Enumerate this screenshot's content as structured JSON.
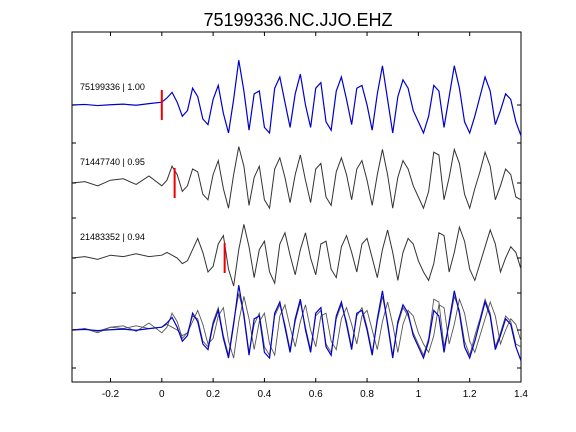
{
  "chart_data": {
    "type": "line",
    "title": "75199336.NC.JJO.EHZ",
    "xlabel": "",
    "ylabel": "",
    "xlim": [
      -0.35,
      1.4
    ],
    "x_ticks": [
      -0.2,
      0,
      0.2,
      0.4,
      0.6,
      0.8,
      1,
      1.2,
      1.4
    ],
    "x_tick_labels": [
      "-0.2",
      "0",
      "0.2",
      "0.4",
      "0.6",
      "0.8",
      "1",
      "1.2",
      "1.4"
    ],
    "grid": false,
    "legend": "none",
    "traces": [
      {
        "label": "75199336 | 1.00",
        "color": "#0000cc",
        "pick": 0.0,
        "x": [
          -0.35,
          -0.3,
          -0.25,
          -0.2,
          -0.15,
          -0.1,
          -0.05,
          0.0,
          0.02,
          0.04,
          0.06,
          0.08,
          0.1,
          0.12,
          0.14,
          0.16,
          0.18,
          0.2,
          0.22,
          0.24,
          0.26,
          0.28,
          0.3,
          0.32,
          0.34,
          0.36,
          0.38,
          0.4,
          0.42,
          0.44,
          0.46,
          0.48,
          0.5,
          0.52,
          0.54,
          0.56,
          0.58,
          0.6,
          0.62,
          0.64,
          0.66,
          0.68,
          0.7,
          0.72,
          0.74,
          0.76,
          0.78,
          0.8,
          0.82,
          0.84,
          0.86,
          0.88,
          0.9,
          0.92,
          0.94,
          0.96,
          0.98,
          1.0,
          1.02,
          1.04,
          1.06,
          1.08,
          1.1,
          1.12,
          1.14,
          1.16,
          1.18,
          1.2,
          1.22,
          1.24,
          1.26,
          1.28,
          1.3,
          1.32,
          1.34,
          1.36,
          1.38,
          1.4
        ],
        "values": [
          0.0,
          0.02,
          -0.02,
          0.01,
          0.03,
          -0.01,
          0.05,
          0.1,
          0.25,
          0.45,
          0.1,
          -0.4,
          -0.2,
          0.6,
          0.3,
          -0.5,
          -0.7,
          0.2,
          0.7,
          -0.3,
          -1.0,
          0.2,
          1.6,
          0.5,
          -0.9,
          0.4,
          0.5,
          -0.8,
          -1.0,
          0.6,
          1.0,
          0.1,
          -0.8,
          0.4,
          1.1,
          0.0,
          -0.8,
          0.6,
          0.8,
          -0.6,
          -0.9,
          0.5,
          1.0,
          0.2,
          -0.7,
          0.6,
          0.7,
          0.0,
          -0.9,
          0.4,
          1.4,
          0.2,
          -1.0,
          0.3,
          0.9,
          0.6,
          -0.2,
          -0.6,
          -1.0,
          -0.4,
          0.7,
          0.5,
          -0.8,
          0.3,
          1.4,
          0.6,
          -0.6,
          -1.0,
          -0.4,
          0.3,
          1.0,
          0.5,
          -0.7,
          -0.2,
          0.4,
          0.2,
          -0.6,
          -1.1
        ]
      },
      {
        "label": "71447740 | 0.95",
        "color": "#333333",
        "pick": 0.05,
        "x": [
          -0.35,
          -0.3,
          -0.25,
          -0.2,
          -0.15,
          -0.1,
          -0.05,
          0.0,
          0.02,
          0.04,
          0.06,
          0.08,
          0.1,
          0.12,
          0.14,
          0.16,
          0.18,
          0.2,
          0.22,
          0.24,
          0.26,
          0.28,
          0.3,
          0.32,
          0.34,
          0.36,
          0.38,
          0.4,
          0.42,
          0.44,
          0.46,
          0.48,
          0.5,
          0.52,
          0.54,
          0.56,
          0.58,
          0.6,
          0.62,
          0.64,
          0.66,
          0.68,
          0.7,
          0.72,
          0.74,
          0.76,
          0.78,
          0.8,
          0.82,
          0.84,
          0.86,
          0.88,
          0.9,
          0.92,
          0.94,
          0.96,
          0.98,
          1.0,
          1.02,
          1.04,
          1.06,
          1.08,
          1.1,
          1.12,
          1.14,
          1.16,
          1.18,
          1.2,
          1.22,
          1.24,
          1.26,
          1.28,
          1.3,
          1.32,
          1.34,
          1.36,
          1.38,
          1.4
        ],
        "values": [
          0.0,
          0.05,
          -0.1,
          0.1,
          0.15,
          -0.05,
          0.25,
          -0.1,
          0.1,
          0.6,
          0.3,
          -0.3,
          -0.1,
          0.5,
          0.4,
          -0.4,
          -0.6,
          0.3,
          0.8,
          -0.2,
          -0.9,
          0.3,
          1.3,
          0.6,
          -0.8,
          0.2,
          0.6,
          -0.6,
          -0.9,
          0.5,
          0.9,
          0.2,
          -0.7,
          0.3,
          1.0,
          0.1,
          -0.7,
          0.5,
          0.7,
          -0.5,
          -0.8,
          0.4,
          0.9,
          0.3,
          -0.6,
          0.5,
          0.8,
          0.1,
          -0.8,
          0.3,
          1.2,
          0.3,
          -0.9,
          0.2,
          0.8,
          0.5,
          -0.1,
          -0.5,
          -0.9,
          -0.3,
          1.1,
          1.0,
          -0.6,
          0.2,
          1.2,
          0.7,
          -0.4,
          -0.9,
          -0.2,
          0.4,
          1.1,
          0.6,
          -0.6,
          -0.1,
          0.5,
          0.3,
          -0.5,
          -0.6
        ]
      },
      {
        "label": "21483352 | 0.94",
        "color": "#333333",
        "pick": 0.245,
        "x": [
          -0.35,
          -0.3,
          -0.25,
          -0.2,
          -0.15,
          -0.1,
          -0.05,
          0.0,
          0.02,
          0.04,
          0.06,
          0.08,
          0.1,
          0.12,
          0.14,
          0.16,
          0.18,
          0.2,
          0.22,
          0.24,
          0.26,
          0.28,
          0.3,
          0.32,
          0.34,
          0.36,
          0.38,
          0.4,
          0.42,
          0.44,
          0.46,
          0.48,
          0.5,
          0.52,
          0.54,
          0.56,
          0.58,
          0.6,
          0.62,
          0.64,
          0.66,
          0.68,
          0.7,
          0.72,
          0.74,
          0.76,
          0.78,
          0.8,
          0.82,
          0.84,
          0.86,
          0.88,
          0.9,
          0.92,
          0.94,
          0.96,
          0.98,
          1.0,
          1.02,
          1.04,
          1.06,
          1.08,
          1.1,
          1.12,
          1.14,
          1.16,
          1.18,
          1.2,
          1.22,
          1.24,
          1.26,
          1.28,
          1.3,
          1.32,
          1.34,
          1.36,
          1.38,
          1.4
        ],
        "values": [
          0.0,
          0.05,
          -0.05,
          0.1,
          0.05,
          0.15,
          0.05,
          0.1,
          0.2,
          0.1,
          0.0,
          -0.2,
          -0.1,
          0.3,
          0.7,
          0.2,
          -0.5,
          -0.3,
          0.5,
          0.8,
          -0.4,
          -1.0,
          0.3,
          1.2,
          0.4,
          -0.7,
          0.3,
          0.6,
          -0.5,
          -0.9,
          0.5,
          0.9,
          0.1,
          -0.6,
          0.3,
          0.9,
          0.0,
          -0.6,
          0.5,
          0.6,
          -0.4,
          -0.7,
          0.4,
          0.8,
          0.2,
          -0.5,
          0.5,
          0.7,
          0.0,
          -0.7,
          0.3,
          1.0,
          0.2,
          -0.8,
          0.2,
          0.7,
          0.5,
          -0.1,
          -0.5,
          -0.8,
          -0.2,
          0.9,
          0.8,
          -0.5,
          0.2,
          1.1,
          0.6,
          -0.4,
          -0.8,
          -0.2,
          0.4,
          1.0,
          0.5,
          -0.5,
          0.0,
          0.4,
          0.2,
          -0.4
        ]
      }
    ]
  }
}
